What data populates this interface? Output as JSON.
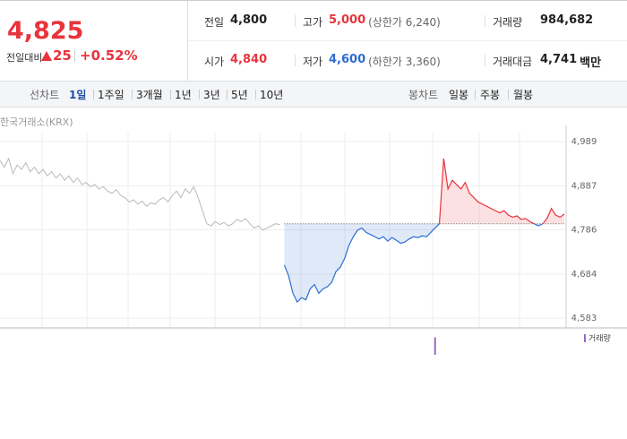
{
  "quote": {
    "price": "4,825",
    "change_label": "전일대비",
    "change": "25",
    "change_rate": "+0.52%"
  },
  "stats": [
    [
      {
        "label": "전일",
        "value": "4,800"
      },
      {
        "label": "고가",
        "value": "5,000",
        "note": "(상한가 6,240)"
      },
      {
        "label": "거래량",
        "value": "984,682"
      }
    ],
    [
      {
        "label": "시가",
        "value": "4,840"
      },
      {
        "label": "저가",
        "value": "4,600",
        "note": "(하한가 3,360)"
      },
      {
        "label": "거래대금",
        "value": "4,741",
        "unit": "백만"
      }
    ]
  ],
  "tabs": {
    "line_label": "선차트",
    "line_periods": [
      "1일",
      "1주일",
      "3개월",
      "1년",
      "3년",
      "5년",
      "10년"
    ],
    "selected": 0,
    "candle_label": "봉차트",
    "candle_periods": [
      "일봉",
      "주봉",
      "월봉"
    ]
  },
  "chart_data": {
    "type": "line",
    "source": "한국거래소(KRX)",
    "ylim": [
      4583,
      4989
    ],
    "yticks": [
      {
        "value": 4989,
        "label": "4,989"
      },
      {
        "value": 4887,
        "label": "4,887"
      },
      {
        "value": 4786,
        "label": "4,786"
      },
      {
        "value": 4684,
        "label": "4,684"
      },
      {
        "value": 4583,
        "label": "4,583"
      }
    ],
    "baseline": 4800,
    "series": [
      {
        "color": "#b9b9b9",
        "values": [
          4945,
          4930,
          4950,
          4915,
          4935,
          4925,
          4940,
          4920,
          4930,
          4915,
          4925,
          4910,
          4920,
          4905,
          4915,
          4900,
          4910,
          4895,
          4905,
          4890,
          4895,
          4885,
          4890,
          4880,
          4885,
          4875,
          4870,
          4878,
          4865,
          4860,
          4850,
          4855,
          4845,
          4852,
          4840,
          4848,
          4845,
          4855,
          4860,
          4850,
          4865,
          4875,
          4860,
          4880,
          4870,
          4885,
          4860,
          4830,
          4800,
          4795,
          4805,
          4798,
          4803,
          4795,
          4800,
          4810,
          4805,
          4812,
          4800,
          4790,
          4795,
          4785,
          4790,
          4795,
          4800,
          4798,
          null,
          null,
          null,
          null,
          null,
          null,
          null,
          null,
          null,
          null,
          null,
          null,
          null,
          null,
          null,
          null,
          null,
          null,
          null,
          null,
          null,
          null,
          null,
          null,
          null,
          null,
          null,
          null,
          null,
          null,
          null,
          null,
          null,
          null,
          null,
          null,
          null,
          null,
          null,
          null,
          null,
          null,
          null,
          null,
          null,
          null,
          null,
          null,
          null,
          null,
          null,
          null,
          null,
          null,
          null,
          null,
          null,
          null,
          null,
          null,
          null,
          null,
          null,
          null,
          null,
          null
        ]
      },
      {
        "up_color": "#e8343c",
        "down_color": "#2c6dd2",
        "values": [
          null,
          null,
          null,
          null,
          null,
          null,
          null,
          null,
          null,
          null,
          null,
          null,
          null,
          null,
          null,
          null,
          null,
          null,
          null,
          null,
          null,
          null,
          null,
          null,
          null,
          null,
          null,
          null,
          null,
          null,
          null,
          null,
          null,
          null,
          null,
          null,
          null,
          null,
          null,
          null,
          null,
          null,
          null,
          null,
          null,
          null,
          null,
          null,
          null,
          null,
          null,
          null,
          null,
          null,
          null,
          null,
          null,
          null,
          null,
          null,
          null,
          null,
          null,
          null,
          null,
          null,
          4705,
          4680,
          4640,
          4620,
          4630,
          4625,
          4650,
          4660,
          4640,
          4650,
          4655,
          4665,
          4690,
          4700,
          4720,
          4750,
          4770,
          4785,
          4790,
          4780,
          4775,
          4770,
          4765,
          4770,
          4760,
          4768,
          4762,
          4755,
          4758,
          4765,
          4770,
          4768,
          4772,
          4770,
          4780,
          4790,
          4800,
          4950,
          4880,
          4900,
          4890,
          4880,
          4895,
          4870,
          4860,
          4850,
          4845,
          4840,
          4835,
          4830,
          4825,
          4830,
          4820,
          4815,
          4818,
          4810,
          4812,
          4805,
          4800,
          4795,
          4800,
          4812,
          4835,
          4820,
          4815,
          4822
        ]
      }
    ],
    "volume": {
      "name": "거래량",
      "color": "#8e6cc4",
      "x": [
        101
      ],
      "values": [
        300000
      ],
      "ylim": [
        0,
        400000
      ]
    }
  }
}
